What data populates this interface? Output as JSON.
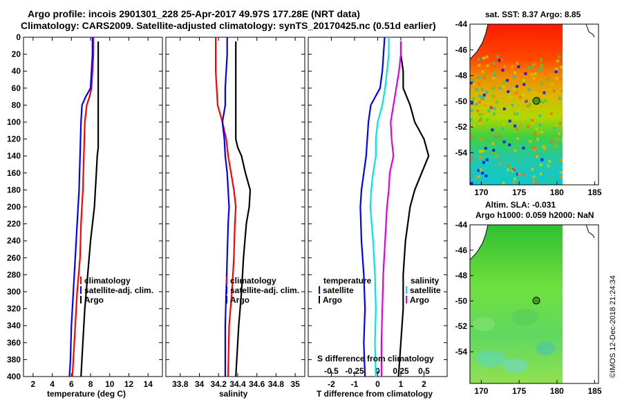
{
  "title": {
    "line1": "Argo profile: incois 2901301_228 25-Apr-2017 49.97S 177.28E (NRT data)",
    "line2": "Climatology: CARS2009. Satellite-adjusted climatology: synTS_20170425.nc (0.51d earlier)"
  },
  "colors": {
    "climatology": "#ff0000",
    "satellite": "#0000ff",
    "argo": "#000000",
    "sal_satellite": "#00e5e5",
    "sal_argo": "#e000e0",
    "land": "#22bb22"
  },
  "chart_data": [
    {
      "type": "line",
      "name": "temperature-panel",
      "xlabel": "temperature (deg C)",
      "ylabel": "",
      "xlim": [
        1,
        15.5
      ],
      "ylim": [
        400,
        0
      ],
      "xticks": [
        2,
        4,
        6,
        8,
        10,
        12,
        14
      ],
      "yticks": [
        0,
        20,
        40,
        60,
        80,
        100,
        120,
        140,
        160,
        180,
        200,
        220,
        240,
        260,
        280,
        300,
        320,
        340,
        360,
        380,
        400
      ],
      "legend": [
        "climatology",
        "satellite-adj. clim.",
        "Argo"
      ],
      "series": [
        {
          "name": "climatology",
          "color": "#ff0000",
          "depth": [
            0,
            20,
            40,
            60,
            70,
            80,
            100,
            140,
            180,
            220,
            260,
            300,
            340,
            380,
            400
          ],
          "values": [
            8.3,
            8.3,
            8.2,
            8.1,
            7.9,
            7.6,
            7.4,
            7.3,
            7.2,
            7.0,
            6.9,
            6.6,
            6.4,
            6.2,
            6.1
          ]
        },
        {
          "name": "satellite-adj. clim.",
          "color": "#0000ff",
          "depth": [
            0,
            20,
            40,
            60,
            70,
            80,
            100,
            140,
            180,
            220,
            260,
            300,
            340,
            380,
            400
          ],
          "values": [
            8.2,
            8.2,
            8.1,
            8.0,
            7.5,
            7.1,
            7.0,
            6.9,
            6.8,
            6.6,
            6.4,
            6.2,
            6.0,
            5.9,
            5.8
          ]
        },
        {
          "name": "Argo",
          "color": "#000000",
          "depth": [
            5,
            20,
            40,
            60,
            80,
            100,
            130,
            140,
            160,
            200,
            240,
            280,
            320,
            360,
            400
          ],
          "values": [
            8.8,
            8.8,
            8.8,
            8.8,
            8.8,
            8.8,
            8.8,
            8.7,
            8.6,
            8.4,
            8.0,
            7.7,
            7.4,
            7.2,
            7.0
          ]
        }
      ]
    },
    {
      "type": "line",
      "name": "salinity-panel",
      "xlabel": "salinity",
      "xlim": [
        33.65,
        35.1
      ],
      "ylim": [
        400,
        0
      ],
      "xticks": [
        33.8,
        34,
        34.2,
        34.4,
        34.6,
        34.8,
        35
      ],
      "xticklabels": [
        "33.8",
        "34",
        "34.2",
        "34.4",
        "34.6",
        "34.8",
        "35"
      ],
      "legend": [
        "climatology",
        "satellite-adj. clim.",
        "Argo"
      ],
      "series": [
        {
          "name": "climatology",
          "color": "#ff0000",
          "depth": [
            0,
            20,
            40,
            60,
            80,
            100,
            120,
            140,
            160,
            180,
            200,
            220,
            260,
            300,
            340,
            400
          ],
          "values": [
            34.17,
            34.17,
            34.17,
            34.18,
            34.19,
            34.24,
            34.28,
            34.3,
            34.33,
            34.36,
            34.38,
            34.37,
            34.36,
            34.34,
            34.31,
            34.3
          ]
        },
        {
          "name": "satellite-adj. clim.",
          "color": "#0000ff",
          "depth": [
            0,
            20,
            40,
            60,
            80,
            100,
            120,
            140,
            160,
            180,
            200,
            220,
            260,
            300,
            340,
            400
          ],
          "values": [
            34.29,
            34.29,
            34.28,
            34.27,
            34.27,
            34.24,
            34.26,
            34.27,
            34.29,
            34.3,
            34.31,
            34.3,
            34.29,
            34.28,
            34.27,
            34.27
          ]
        },
        {
          "name": "Argo",
          "color": "#000000",
          "depth": [
            5,
            20,
            40,
            60,
            80,
            100,
            120,
            130,
            140,
            160,
            180,
            200,
            220,
            260,
            300,
            340,
            400
          ],
          "values": [
            34.38,
            34.38,
            34.38,
            34.38,
            34.38,
            34.38,
            34.38,
            34.4,
            34.44,
            34.48,
            34.53,
            34.52,
            34.49,
            34.46,
            34.44,
            34.41,
            34.38
          ]
        }
      ]
    },
    {
      "type": "line",
      "name": "difference-panel",
      "xlabel": "T difference from climatology",
      "top_label": "S difference from climatology",
      "xlim": [
        -3,
        3
      ],
      "ylim": [
        400,
        0
      ],
      "xticks": [
        -2,
        -1,
        0,
        1,
        2
      ],
      "xticklabels": [
        "-2",
        "-1",
        "0",
        "1",
        "2"
      ],
      "s_xticklabels": [
        "-0.5",
        "-0.25",
        "0",
        "0.25",
        "0.5"
      ],
      "legend_temperature": {
        "header": "temperature",
        "items": [
          "satellite",
          "Argo"
        ]
      },
      "legend_salinity": {
        "header": "salinity",
        "items": [
          "satellite",
          "Argo"
        ]
      },
      "series": [
        {
          "name": "T satellite",
          "color": "#0000ff",
          "depth": [
            0,
            20,
            40,
            60,
            80,
            100,
            120,
            140,
            160,
            180,
            200,
            240,
            280,
            320,
            360,
            400
          ],
          "values": [
            0.3,
            0.25,
            0.2,
            0.1,
            -0.3,
            -0.4,
            -0.45,
            -0.5,
            -0.6,
            -0.7,
            -0.75,
            -0.7,
            -0.6,
            -0.55,
            -0.6,
            -0.55
          ]
        },
        {
          "name": "T Argo",
          "color": "#000000",
          "depth": [
            5,
            20,
            40,
            60,
            80,
            100,
            120,
            140,
            160,
            180,
            200,
            240,
            280,
            320,
            360,
            400
          ],
          "values": [
            1.0,
            1.0,
            1.1,
            1.1,
            1.4,
            1.6,
            2.0,
            2.2,
            1.9,
            1.6,
            1.4,
            1.2,
            1.1,
            1.1,
            1.0,
            0.9
          ]
        },
        {
          "name": "S satellite",
          "color": "#00e5e5",
          "depth": [
            0,
            20,
            40,
            60,
            80,
            100,
            120,
            140,
            160,
            180,
            200,
            240,
            280,
            320,
            360,
            400
          ],
          "values": [
            0.12,
            0.12,
            0.1,
            0.08,
            0.05,
            0.0,
            -0.02,
            -0.02,
            -0.05,
            -0.07,
            -0.08,
            -0.05,
            -0.03,
            -0.02,
            -0.03,
            -0.02
          ]
        },
        {
          "name": "S Argo",
          "color": "#e000e0",
          "depth": [
            5,
            20,
            40,
            60,
            80,
            100,
            120,
            140,
            160,
            180,
            200,
            240,
            280,
            320,
            360,
            400
          ],
          "values": [
            0.25,
            0.25,
            0.23,
            0.2,
            0.17,
            0.14,
            0.15,
            0.17,
            0.13,
            0.12,
            0.1,
            0.08,
            0.06,
            0.05,
            0.04,
            0.04
          ]
        }
      ]
    },
    {
      "type": "heatmap",
      "name": "sst-map",
      "title": "sat. SST: 8.37 Argo: 8.85",
      "xticks": [
        170,
        175,
        180,
        185
      ],
      "yticks": [
        -44,
        -46,
        -48,
        -50,
        -52,
        -54
      ],
      "xlim": [
        168.5,
        185.5
      ],
      "ylim": [
        -56.5,
        -44
      ],
      "argo_position": {
        "lon": 177.28,
        "lat": -49.97
      }
    },
    {
      "type": "heatmap",
      "name": "sla-map",
      "title": "Altim. SLA: -0.031",
      "subtitle": "Argo h1000: 0.059 h2000: NaN",
      "xticks": [
        170,
        175,
        180,
        185
      ],
      "yticks": [
        -44,
        -46,
        -48,
        -50,
        -52,
        -54
      ],
      "xlim": [
        168.5,
        185.5
      ],
      "ylim": [
        -56.5,
        -44
      ],
      "argo_position": {
        "lon": 177.28,
        "lat": -49.97
      }
    }
  ],
  "stamp": "©IMOS 12-Dec-2018 21:24:34"
}
